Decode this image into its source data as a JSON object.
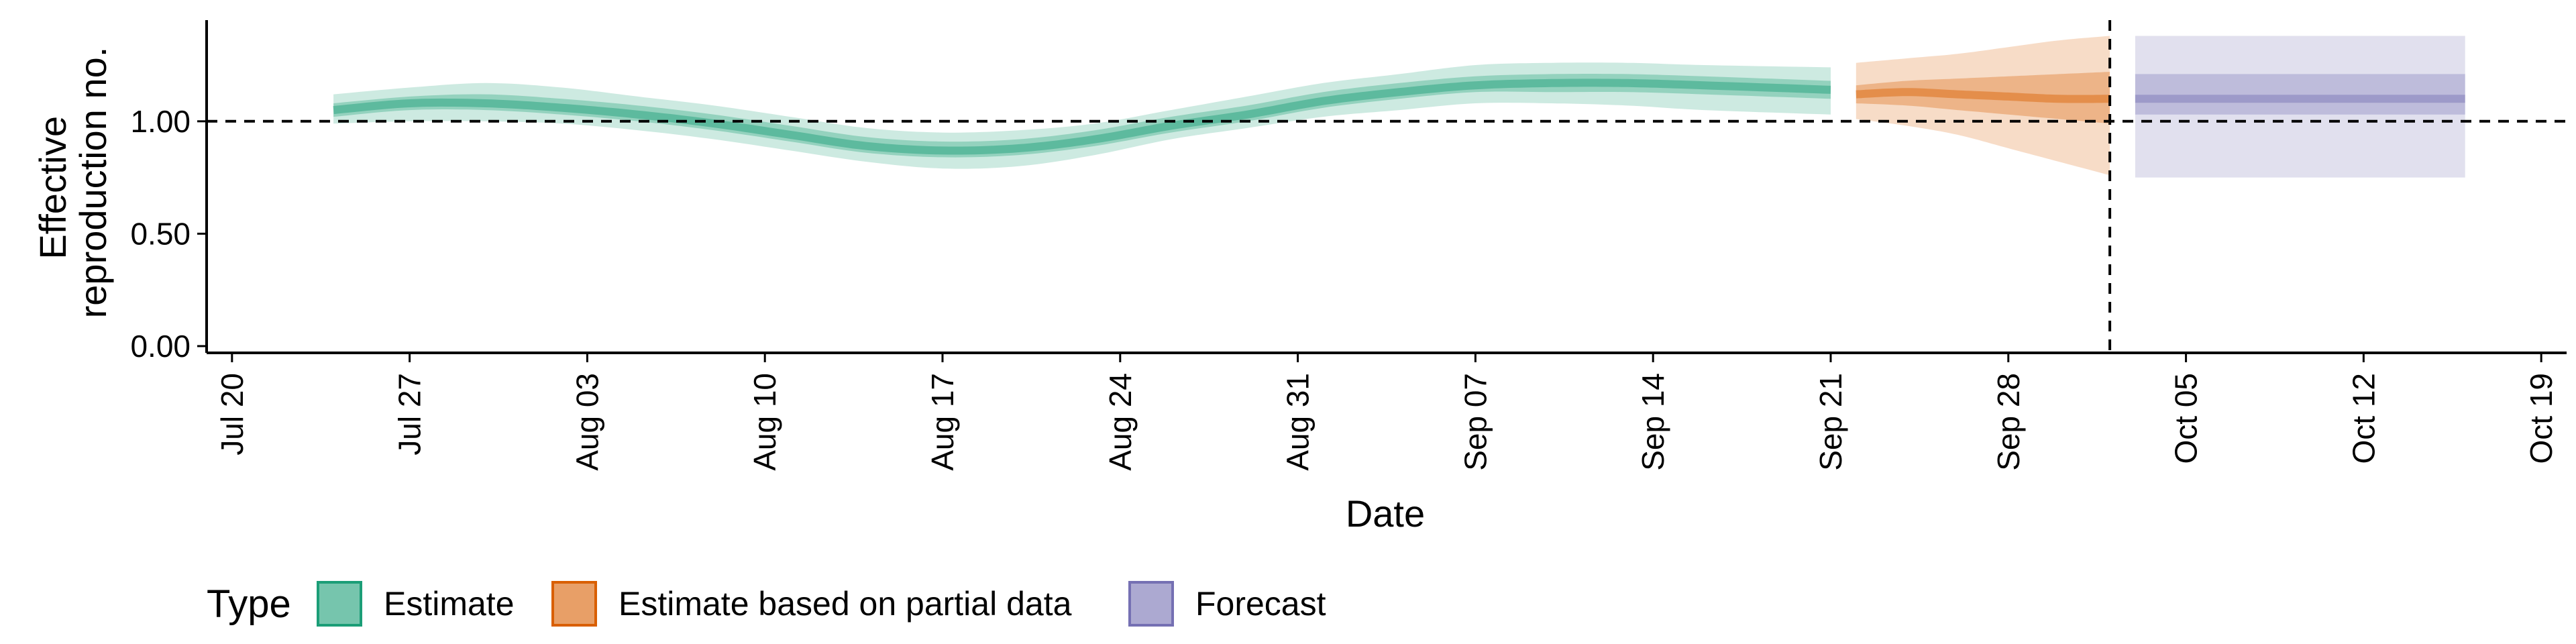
{
  "chart_data": {
    "type": "area",
    "xlabel": "Date",
    "ylabel_lines": [
      "Effective",
      "reproduction no."
    ],
    "xlim": [
      "2020-07-19",
      "2020-10-20"
    ],
    "ylim": [
      -0.03,
      1.45
    ],
    "x_ticks": [
      "2020-07-20",
      "2020-07-27",
      "2020-08-03",
      "2020-08-10",
      "2020-08-17",
      "2020-08-24",
      "2020-08-31",
      "2020-09-07",
      "2020-09-14",
      "2020-09-21",
      "2020-09-28",
      "2020-10-05",
      "2020-10-12",
      "2020-10-19"
    ],
    "x_tick_labels": [
      "Jul 20",
      "Jul 27",
      "Aug 03",
      "Aug 10",
      "Aug 17",
      "Aug 24",
      "Aug 31",
      "Sep 07",
      "Sep 14",
      "Sep 21",
      "Sep 28",
      "Oct 05",
      "Oct 12",
      "Oct 19"
    ],
    "y_ticks": [
      0,
      0.5,
      1.0
    ],
    "y_tick_labels": [
      "0.00",
      "0.50",
      "1.00"
    ],
    "reference_lines": {
      "horizontal_y": 1.0,
      "vertical_x": "2020-10-02"
    },
    "legend": {
      "title": "Type",
      "position": "bottom-left",
      "entries": [
        {
          "label": "Estimate",
          "fill": "#1b9e77",
          "stroke": "#1b9e77"
        },
        {
          "label": "Estimate based on partial data",
          "fill": "#d95f02",
          "stroke": "#d95f02"
        },
        {
          "label": "Forecast",
          "fill": "#7570b3",
          "stroke": "#7570b3"
        }
      ]
    },
    "series": [
      {
        "name": "Estimate",
        "color": "#1b9e77",
        "x": [
          "2020-07-24",
          "2020-07-27",
          "2020-07-30",
          "2020-08-02",
          "2020-08-05",
          "2020-08-08",
          "2020-08-11",
          "2020-08-14",
          "2020-08-17",
          "2020-08-20",
          "2020-08-23",
          "2020-08-26",
          "2020-08-29",
          "2020-09-01",
          "2020-09-04",
          "2020-09-07",
          "2020-09-10",
          "2020-09-13",
          "2020-09-16",
          "2020-09-21"
        ],
        "median": [
          1.05,
          1.08,
          1.08,
          1.06,
          1.03,
          0.99,
          0.94,
          0.89,
          0.87,
          0.88,
          0.92,
          0.98,
          1.03,
          1.09,
          1.13,
          1.16,
          1.17,
          1.17,
          1.16,
          1.14
        ],
        "lower_90": [
          0.99,
          1.0,
          1.0,
          0.99,
          0.96,
          0.92,
          0.87,
          0.82,
          0.79,
          0.8,
          0.85,
          0.92,
          0.97,
          1.02,
          1.05,
          1.08,
          1.08,
          1.07,
          1.05,
          1.03
        ],
        "upper_90": [
          1.12,
          1.15,
          1.17,
          1.15,
          1.11,
          1.07,
          1.02,
          0.97,
          0.95,
          0.96,
          0.99,
          1.05,
          1.11,
          1.17,
          1.21,
          1.25,
          1.26,
          1.26,
          1.25,
          1.24
        ],
        "lower_50": [
          1.02,
          1.05,
          1.05,
          1.03,
          1.0,
          0.96,
          0.91,
          0.86,
          0.84,
          0.85,
          0.89,
          0.95,
          1.0,
          1.06,
          1.1,
          1.13,
          1.13,
          1.13,
          1.12,
          1.1
        ],
        "upper_50": [
          1.08,
          1.11,
          1.12,
          1.1,
          1.07,
          1.03,
          0.98,
          0.93,
          0.91,
          0.92,
          0.96,
          1.02,
          1.07,
          1.13,
          1.17,
          1.2,
          1.21,
          1.21,
          1.2,
          1.18
        ]
      },
      {
        "name": "Estimate based on partial data",
        "color": "#d95f02",
        "x": [
          "2020-09-22",
          "2020-09-24",
          "2020-09-26",
          "2020-09-28",
          "2020-09-30",
          "2020-10-02"
        ],
        "median": [
          1.12,
          1.13,
          1.12,
          1.11,
          1.1,
          1.1
        ],
        "lower_90": [
          1.01,
          0.98,
          0.94,
          0.88,
          0.82,
          0.76
        ],
        "upper_90": [
          1.26,
          1.28,
          1.3,
          1.33,
          1.36,
          1.38
        ],
        "lower_50": [
          1.08,
          1.07,
          1.05,
          1.03,
          1.01,
          0.99
        ],
        "upper_50": [
          1.16,
          1.18,
          1.19,
          1.2,
          1.21,
          1.22
        ]
      },
      {
        "name": "Forecast",
        "color": "#7570b3",
        "x": [
          "2020-10-03",
          "2020-10-16"
        ],
        "median": [
          1.1,
          1.1
        ],
        "lower_90": [
          0.75,
          0.75
        ],
        "upper_90": [
          1.38,
          1.38
        ],
        "lower_50": [
          1.03,
          1.03
        ],
        "upper_50": [
          1.21,
          1.21
        ]
      }
    ]
  }
}
